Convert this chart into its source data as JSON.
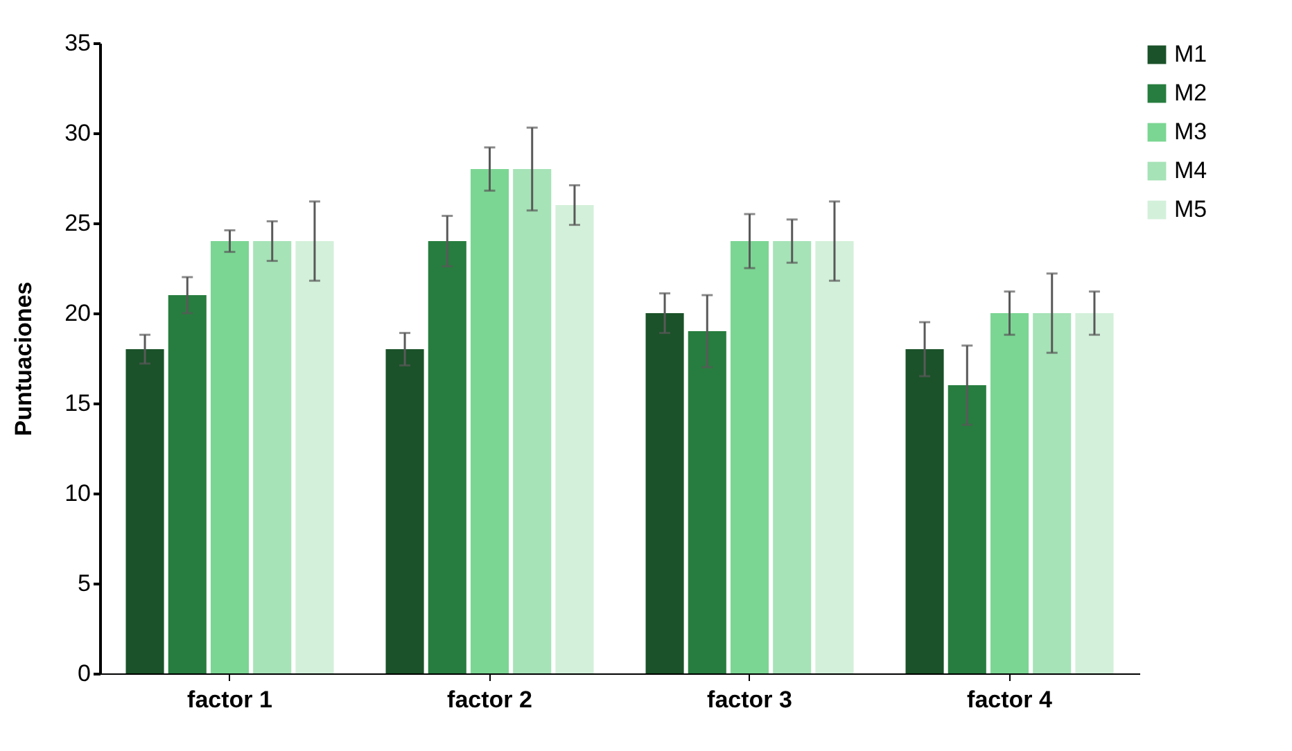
{
  "chart_data": {
    "type": "bar",
    "ylabel": "Puntuaciones",
    "categories": [
      "factor 1",
      "factor 2",
      "factor 3",
      "factor 4"
    ],
    "series": [
      {
        "name": "M1",
        "color": "#1b5229",
        "values": [
          18,
          18,
          20,
          18
        ],
        "errors": [
          0.8,
          0.9,
          1.1,
          1.5
        ]
      },
      {
        "name": "M2",
        "color": "#277d3f",
        "values": [
          21,
          24,
          19,
          16
        ],
        "errors": [
          1,
          1.4,
          2,
          2.2
        ]
      },
      {
        "name": "M3",
        "color": "#7bd693",
        "values": [
          24,
          28,
          24,
          20
        ],
        "errors": [
          0.6,
          1.2,
          1.5,
          1.2
        ]
      },
      {
        "name": "M4",
        "color": "#a6e3b7",
        "values": [
          24,
          28,
          24,
          20
        ],
        "errors": [
          1.1,
          2.3,
          1.2,
          2.2
        ]
      },
      {
        "name": "M5",
        "color": "#d3f0da",
        "values": [
          24,
          26,
          24,
          20
        ],
        "errors": [
          2.2,
          1.1,
          2.2,
          1.2
        ]
      }
    ],
    "ylim": [
      0,
      35
    ],
    "yticks": [
      0,
      5,
      10,
      15,
      20,
      25,
      30,
      35
    ],
    "grid": false,
    "legend": "top right"
  }
}
